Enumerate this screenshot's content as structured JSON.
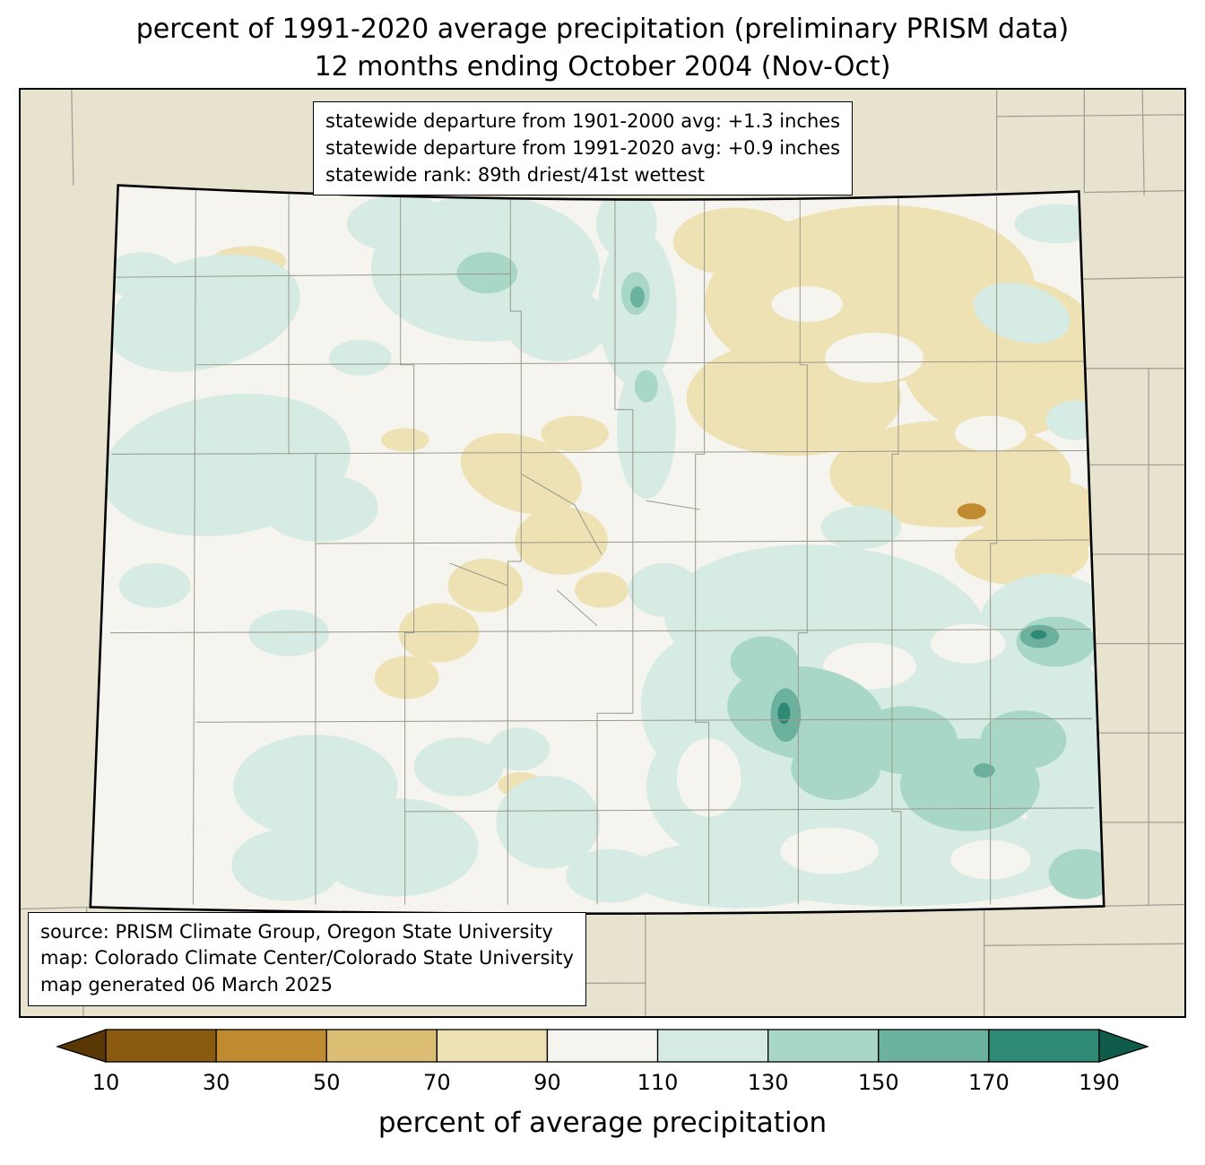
{
  "title": {
    "line1": "percent of 1991-2020 average precipitation (preliminary PRISM data)",
    "line2": "12 months ending October 2004 (Nov-Oct)"
  },
  "stats_box": {
    "line1": "statewide departure from 1901-2000 avg: +1.3 inches",
    "line2": "statewide departure from 1991-2020 avg: +0.9 inches",
    "line3": "statewide rank: 89th driest/41st wettest"
  },
  "source_box": {
    "line1": "source: PRISM Climate Group, Oregon State University",
    "line2": "map: Colorado Climate Center/Colorado State University",
    "line3": "map generated 06 March 2025"
  },
  "colorbar": {
    "label": "percent of average precipitation",
    "ticks": [
      "10",
      "30",
      "50",
      "70",
      "90",
      "110",
      "130",
      "150",
      "170",
      "190"
    ]
  },
  "palette": {
    "bands": [
      "#5a3805",
      "#8a5a10",
      "#c08a30",
      "#dcbd74",
      "#eee1b4",
      "#f5f4ee",
      "#d5ebe3",
      "#a8d7c8",
      "#6cb19d",
      "#2e8a74",
      "#0f5c4a"
    ],
    "named": {
      "outer_bg": "#e8e3cf",
      "state_fill": "#f5f4ee",
      "county": "#98988c",
      "neighbor": "#a2a094",
      "state_border": "#000000"
    }
  }
}
